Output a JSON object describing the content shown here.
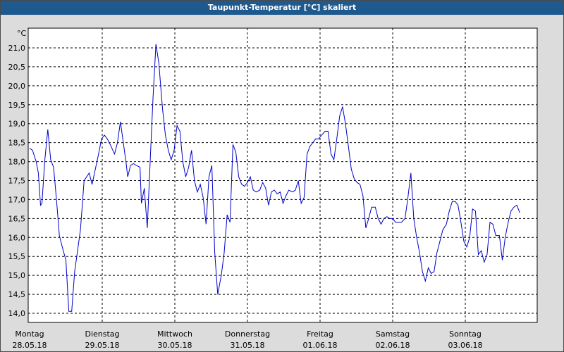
{
  "window": {
    "title": "Taupunkt-Temperatur [°C] skaliert"
  },
  "colors": {
    "titlebar": "#1f5a8e",
    "line": "#0000cc",
    "background": "#dcdcdc",
    "grid": "#000000"
  },
  "chart_data": {
    "type": "line",
    "title": "Taupunkt-Temperatur [°C] skaliert",
    "ylabel": "°C",
    "ylim": [
      13.8,
      21.5
    ],
    "y_ticks": [
      "21,0",
      "20,5",
      "20,0",
      "19,5",
      "19,0",
      "18,5",
      "18,0",
      "17,5",
      "17,0",
      "16,5",
      "16,0",
      "15,5",
      "15,0",
      "14,5",
      "14,0"
    ],
    "y_tick_values": [
      21.0,
      20.5,
      20.0,
      19.5,
      19.0,
      18.5,
      18.0,
      17.5,
      17.0,
      16.5,
      16.0,
      15.5,
      15.0,
      14.5,
      14.0
    ],
    "x_ticks": [
      {
        "day": "Montag",
        "date": "28.05.18"
      },
      {
        "day": "Dienstag",
        "date": "29.05.18"
      },
      {
        "day": "Mittwoch",
        "date": "30.05.18"
      },
      {
        "day": "Donnerstag",
        "date": "31.05.18"
      },
      {
        "day": "Freitag",
        "date": "01.06.18"
      },
      {
        "day": "Samstag",
        "date": "02.06.18"
      },
      {
        "day": "Sonntag",
        "date": "03.06.18"
      }
    ],
    "xlim_days": [
      0,
      7
    ],
    "grid": true,
    "series": [
      {
        "values": [
          [
            0.0,
            18.35
          ],
          [
            0.04,
            18.3
          ],
          [
            0.09,
            18.0
          ],
          [
            0.12,
            17.7
          ],
          [
            0.15,
            16.85
          ],
          [
            0.17,
            16.9
          ],
          [
            0.21,
            18.05
          ],
          [
            0.25,
            18.85
          ],
          [
            0.29,
            18.05
          ],
          [
            0.33,
            17.85
          ],
          [
            0.37,
            17.0
          ],
          [
            0.41,
            16.05
          ],
          [
            0.45,
            15.75
          ],
          [
            0.5,
            15.4
          ],
          [
            0.54,
            14.05
          ],
          [
            0.58,
            14.05
          ],
          [
            0.62,
            15.1
          ],
          [
            0.7,
            16.2
          ],
          [
            0.75,
            17.5
          ],
          [
            0.82,
            17.7
          ],
          [
            0.86,
            17.4
          ],
          [
            0.95,
            18.2
          ],
          [
            0.99,
            18.6
          ],
          [
            1.03,
            18.7
          ],
          [
            1.07,
            18.6
          ],
          [
            1.11,
            18.45
          ],
          [
            1.17,
            18.2
          ],
          [
            1.21,
            18.5
          ],
          [
            1.25,
            19.05
          ],
          [
            1.29,
            18.5
          ],
          [
            1.33,
            17.95
          ],
          [
            1.35,
            17.6
          ],
          [
            1.39,
            17.9
          ],
          [
            1.43,
            17.95
          ],
          [
            1.47,
            17.9
          ],
          [
            1.52,
            17.85
          ],
          [
            1.54,
            16.9
          ],
          [
            1.58,
            17.3
          ],
          [
            1.62,
            16.25
          ],
          [
            1.66,
            18.0
          ],
          [
            1.7,
            19.7
          ],
          [
            1.74,
            21.1
          ],
          [
            1.78,
            20.6
          ],
          [
            1.83,
            19.4
          ],
          [
            1.87,
            18.7
          ],
          [
            1.91,
            18.3
          ],
          [
            1.95,
            18.05
          ],
          [
            1.99,
            18.3
          ],
          [
            2.03,
            18.95
          ],
          [
            2.07,
            18.8
          ],
          [
            2.11,
            18.0
          ],
          [
            2.15,
            17.6
          ],
          [
            2.19,
            17.85
          ],
          [
            2.23,
            18.3
          ],
          [
            2.27,
            17.5
          ],
          [
            2.31,
            17.2
          ],
          [
            2.35,
            17.4
          ],
          [
            2.39,
            17.05
          ],
          [
            2.43,
            16.35
          ],
          [
            2.47,
            17.6
          ],
          [
            2.51,
            17.9
          ],
          [
            2.55,
            15.6
          ],
          [
            2.59,
            14.5
          ],
          [
            2.64,
            15.0
          ],
          [
            2.68,
            15.6
          ],
          [
            2.72,
            16.6
          ],
          [
            2.76,
            16.4
          ],
          [
            2.8,
            18.45
          ],
          [
            2.84,
            18.25
          ],
          [
            2.88,
            17.6
          ],
          [
            2.92,
            17.4
          ],
          [
            2.96,
            17.35
          ],
          [
            3.0,
            17.45
          ],
          [
            3.04,
            17.6
          ],
          [
            3.08,
            17.25
          ],
          [
            3.12,
            17.2
          ],
          [
            3.17,
            17.25
          ],
          [
            3.21,
            17.45
          ],
          [
            3.25,
            17.3
          ],
          [
            3.29,
            16.85
          ],
          [
            3.33,
            17.2
          ],
          [
            3.37,
            17.25
          ],
          [
            3.41,
            17.15
          ],
          [
            3.45,
            17.2
          ],
          [
            3.49,
            16.9
          ],
          [
            3.53,
            17.1
          ],
          [
            3.57,
            17.25
          ],
          [
            3.62,
            17.2
          ],
          [
            3.66,
            17.25
          ],
          [
            3.7,
            17.5
          ],
          [
            3.74,
            16.9
          ],
          [
            3.78,
            17.05
          ],
          [
            3.82,
            18.2
          ],
          [
            3.86,
            18.4
          ],
          [
            3.9,
            18.5
          ],
          [
            3.94,
            18.6
          ],
          [
            3.98,
            18.6
          ],
          [
            4.02,
            18.7
          ],
          [
            4.07,
            18.8
          ],
          [
            4.11,
            18.8
          ],
          [
            4.15,
            18.2
          ],
          [
            4.19,
            18.05
          ],
          [
            4.23,
            18.6
          ],
          [
            4.27,
            19.2
          ],
          [
            4.31,
            19.45
          ],
          [
            4.35,
            19.0
          ],
          [
            4.39,
            18.4
          ],
          [
            4.43,
            17.8
          ],
          [
            4.47,
            17.55
          ],
          [
            4.51,
            17.45
          ],
          [
            4.55,
            17.4
          ],
          [
            4.59,
            17.1
          ],
          [
            4.63,
            16.25
          ],
          [
            4.67,
            16.5
          ],
          [
            4.71,
            16.8
          ],
          [
            4.76,
            16.8
          ],
          [
            4.8,
            16.5
          ],
          [
            4.84,
            16.35
          ],
          [
            4.88,
            16.5
          ],
          [
            4.92,
            16.55
          ],
          [
            4.96,
            16.5
          ],
          [
            5.0,
            16.5
          ],
          [
            5.04,
            16.4
          ],
          [
            5.08,
            16.4
          ],
          [
            5.12,
            16.4
          ],
          [
            5.17,
            16.5
          ],
          [
            5.21,
            17.05
          ],
          [
            5.25,
            17.7
          ],
          [
            5.29,
            16.5
          ],
          [
            5.33,
            16.0
          ],
          [
            5.37,
            15.6
          ],
          [
            5.41,
            15.1
          ],
          [
            5.45,
            14.85
          ],
          [
            5.49,
            15.2
          ],
          [
            5.53,
            15.05
          ],
          [
            5.57,
            15.1
          ],
          [
            5.61,
            15.6
          ],
          [
            5.65,
            15.9
          ],
          [
            5.69,
            16.2
          ],
          [
            5.74,
            16.35
          ],
          [
            5.78,
            16.7
          ],
          [
            5.82,
            16.95
          ],
          [
            5.86,
            16.95
          ],
          [
            5.9,
            16.85
          ],
          [
            5.94,
            16.4
          ],
          [
            5.98,
            15.9
          ],
          [
            6.02,
            15.75
          ],
          [
            6.06,
            16.0
          ],
          [
            6.1,
            16.75
          ],
          [
            6.14,
            16.7
          ],
          [
            6.18,
            15.55
          ],
          [
            6.22,
            15.65
          ],
          [
            6.26,
            15.35
          ],
          [
            6.3,
            15.55
          ],
          [
            6.34,
            16.4
          ],
          [
            6.38,
            16.35
          ],
          [
            6.42,
            16.05
          ],
          [
            6.47,
            16.05
          ],
          [
            6.51,
            15.4
          ],
          [
            6.55,
            16.0
          ],
          [
            6.59,
            16.4
          ],
          [
            6.63,
            16.7
          ],
          [
            6.67,
            16.8
          ],
          [
            6.71,
            16.85
          ],
          [
            6.75,
            16.65
          ]
        ]
      }
    ]
  }
}
